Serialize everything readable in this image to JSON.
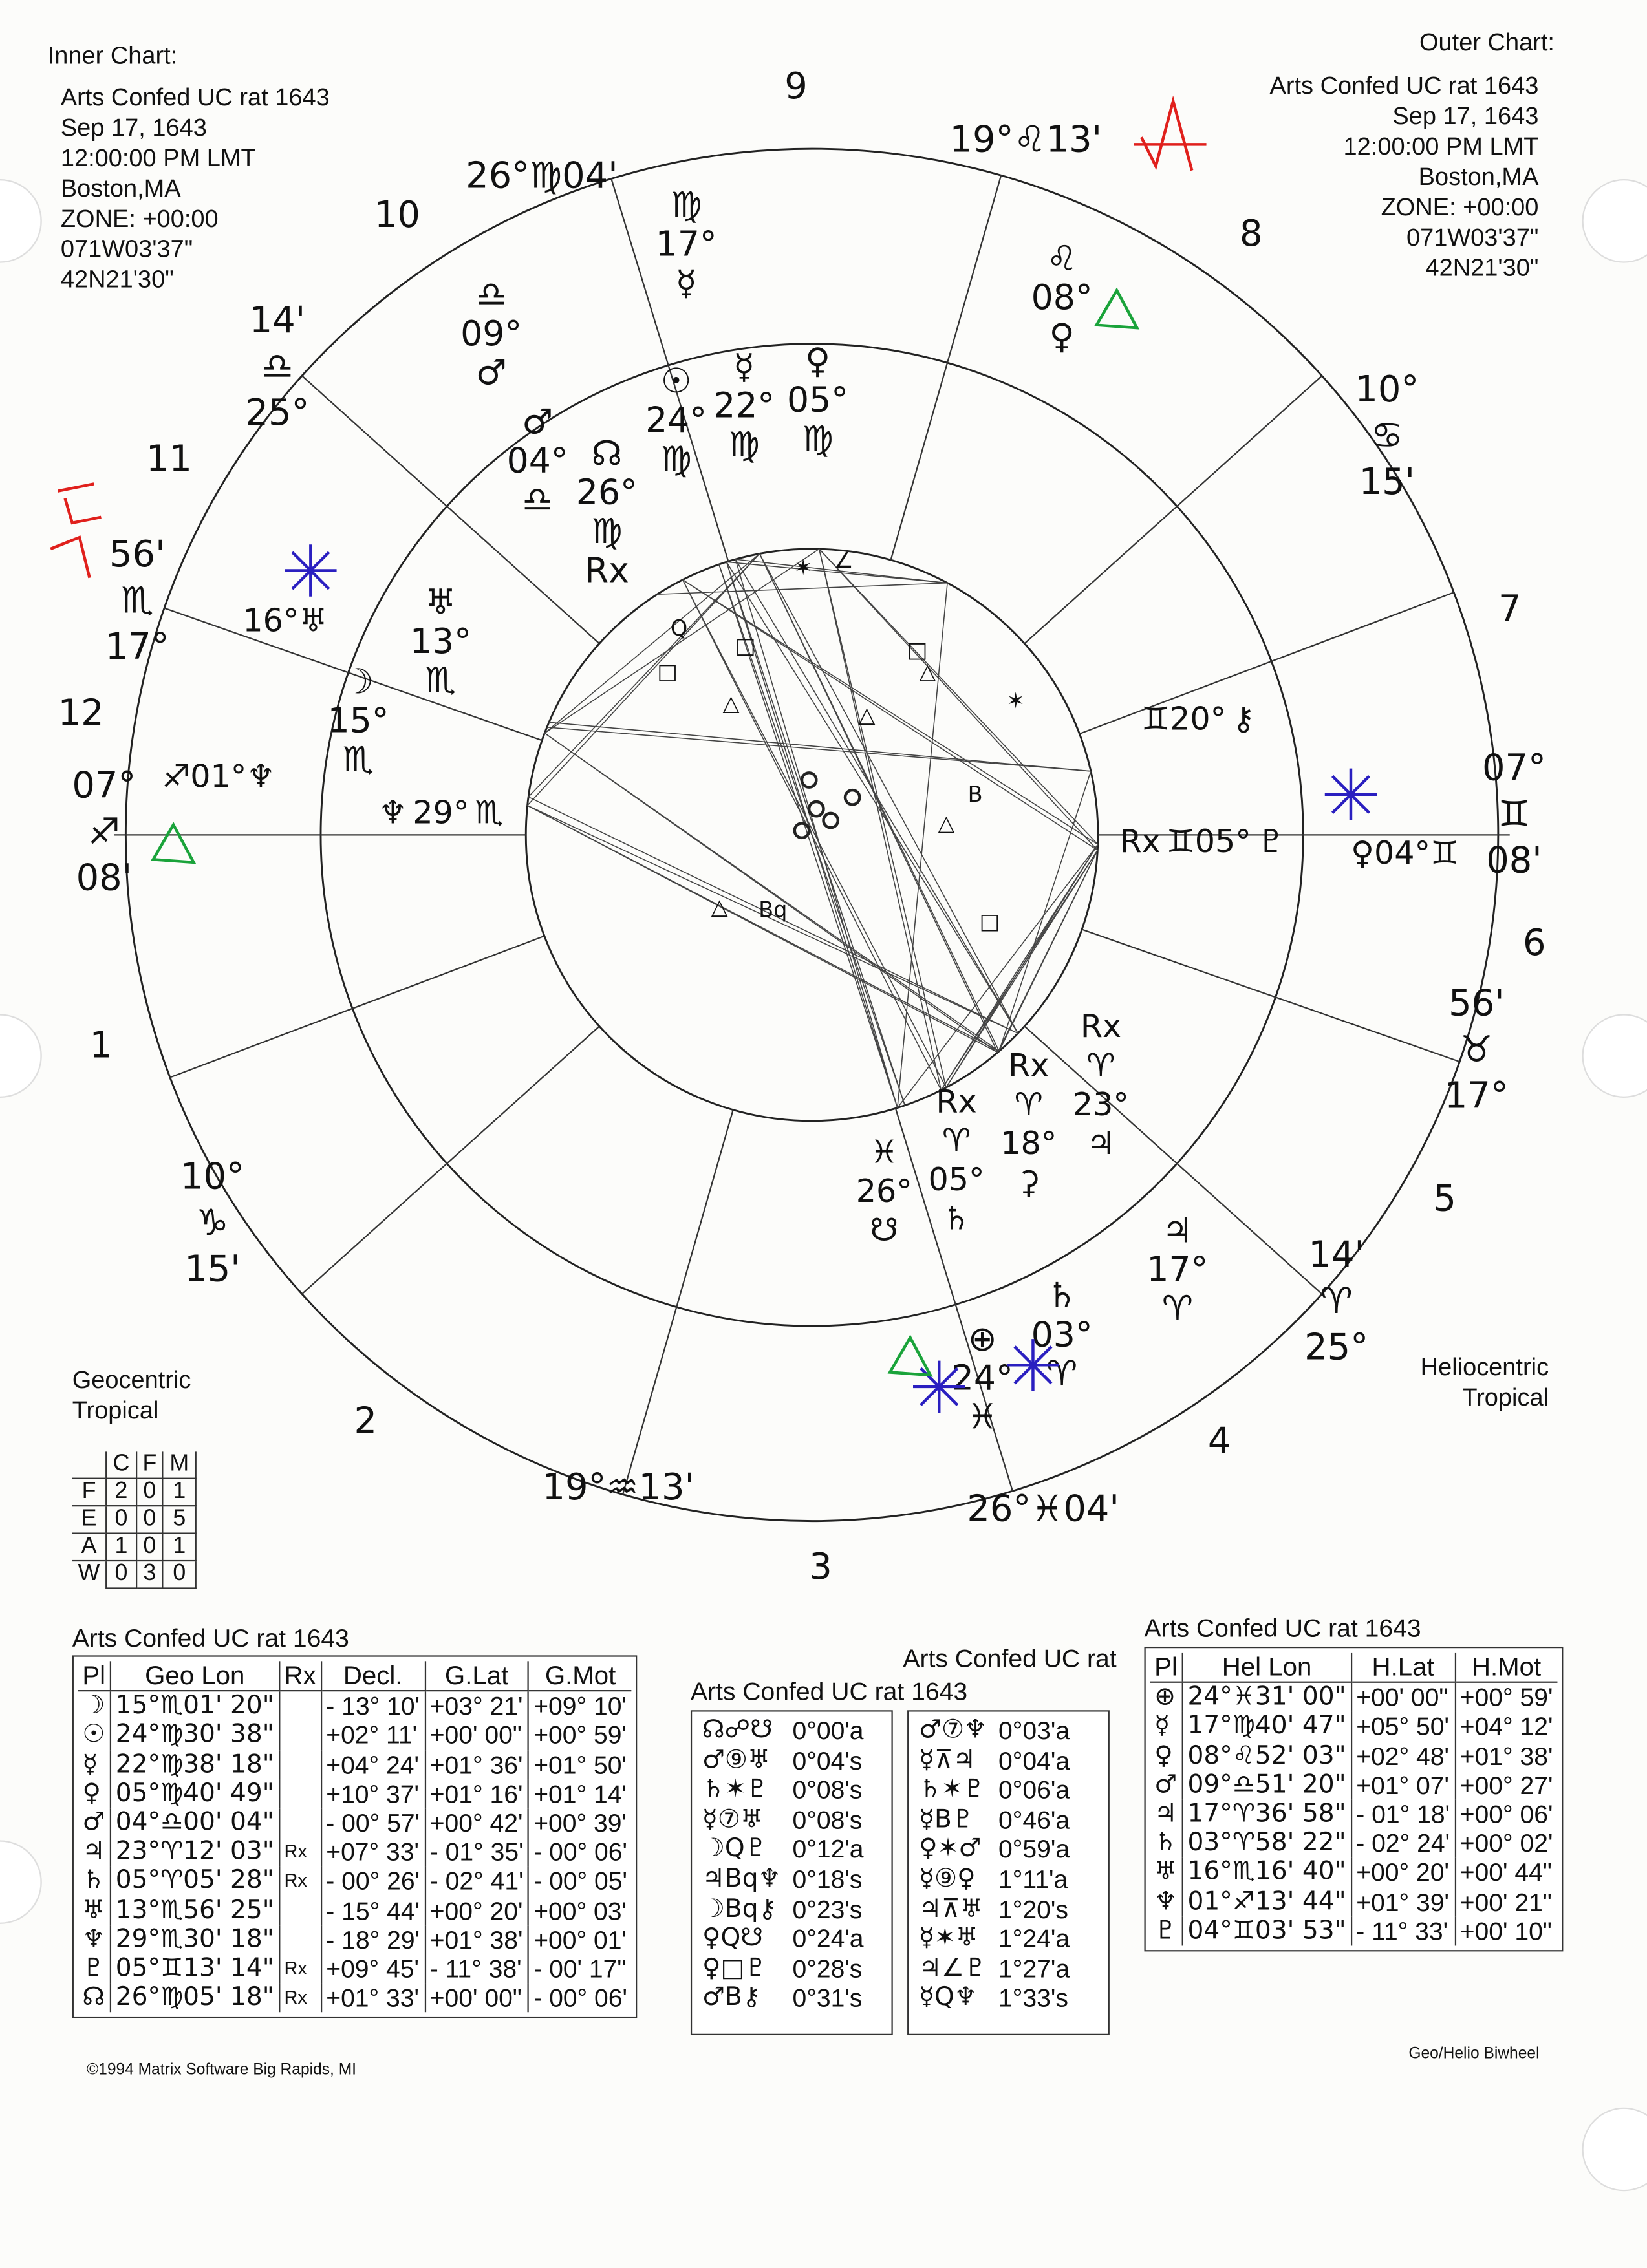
{
  "inner_header": {
    "label": "Inner Chart:",
    "name": "Arts Confed UC rat 1643",
    "date": "Sep 17, 1643",
    "time": "12:00:00 PM LMT",
    "place": "Boston,MA",
    "zone": "ZONE: +00:00",
    "lon": "071W03'37\"",
    "lat": "42N21'30\""
  },
  "outer_header": {
    "label": "Outer Chart:",
    "name": "Arts Confed UC rat 1643",
    "date": "Sep 17, 1643",
    "time": "12:00:00 PM LMT",
    "place": "Boston,MA",
    "zone": "ZONE: +00:00",
    "lon": "071W03'37\"",
    "lat": "42N21'30\""
  },
  "left_system": {
    "line1": "Geocentric",
    "line2": "Tropical"
  },
  "right_system": {
    "line1": "Heliocentric",
    "line2": "Tropical"
  },
  "wheel": {
    "house_numbers": [
      "1",
      "2",
      "3",
      "4",
      "5",
      "6",
      "7",
      "8",
      "9",
      "10",
      "11",
      "12"
    ],
    "cusp_labels": [
      [
        "26°",
        "♍",
        "04'"
      ],
      [
        "19°",
        "♌",
        "13'"
      ],
      [
        "10°",
        "♋",
        "15'"
      ],
      [
        "07°",
        "♊",
        "08'"
      ],
      [
        "56'",
        "♉",
        "17°"
      ],
      [
        "14'",
        "♈",
        "25°"
      ],
      [
        "26°",
        "♓",
        "04'"
      ],
      [
        "19°",
        "♒",
        "13'"
      ],
      [
        "10°",
        "♑",
        "15'"
      ],
      [
        "07°",
        "♐",
        "08'"
      ],
      [
        "56'",
        "♏",
        "17°"
      ],
      [
        "14'",
        "♎",
        "25°"
      ]
    ],
    "inner_planets": [
      [
        "♂",
        "04°",
        "♎"
      ],
      [
        "☊",
        "26°",
        "♍",
        "Rx"
      ],
      [
        "☉",
        "24°",
        "♍"
      ],
      [
        "☿",
        "22°",
        "♍"
      ],
      [
        "♀",
        "05°",
        "♍"
      ],
      [
        "♅",
        "13°",
        "♏"
      ],
      [
        "☽",
        "15°",
        "♏"
      ],
      [
        "♆",
        "29°",
        "♏"
      ],
      [
        "Rx",
        "♊05°",
        "♇"
      ],
      [
        "♊20°",
        "⚷"
      ],
      [
        "Rx",
        "♈",
        "23°",
        "♃"
      ],
      [
        "Rx",
        "♈",
        "18°",
        "⚳"
      ],
      [
        "Rx",
        "♈",
        "05°",
        "♄"
      ],
      [
        "♓",
        "26°",
        "☋"
      ]
    ],
    "outer_planets": [
      [
        "♍",
        "17°",
        "☿"
      ],
      [
        "♎",
        "09°",
        "♂"
      ],
      [
        "♌",
        "08°",
        "♀"
      ],
      [
        "16°",
        "♅"
      ],
      [
        "♐01°",
        "♆"
      ],
      [
        "♀04°",
        "♊"
      ],
      [
        "♃",
        "17°",
        "♈"
      ],
      [
        "♄",
        "03°",
        "♈"
      ],
      [
        "⊕",
        "24°",
        "♓"
      ]
    ],
    "colors": {
      "ink": "#111111",
      "annotation_red": "#e0201c",
      "annotation_green": "#1aa33a",
      "annotation_blue": "#2a1fc0"
    }
  },
  "elements": {
    "cols": [
      "C",
      "F",
      "M"
    ],
    "rows": [
      [
        "F",
        "2",
        "0",
        "1"
      ],
      [
        "E",
        "0",
        "0",
        "5"
      ],
      [
        "A",
        "1",
        "0",
        "1"
      ],
      [
        "W",
        "0",
        "3",
        "0"
      ]
    ]
  },
  "geo_table": {
    "title": "Arts Confed UC rat 1643",
    "headers": [
      "Pl",
      "Geo Lon",
      "Rx",
      "Decl.",
      "G.Lat",
      "G.Mot"
    ],
    "rows": [
      [
        "☽",
        "15°♏01' 20\"",
        "",
        "- 13° 10'",
        "+03° 21'",
        "+09° 10'"
      ],
      [
        "☉",
        "24°♍30' 38\"",
        "",
        "+02° 11'",
        "+00'  00\"",
        "+00° 59'"
      ],
      [
        "☿",
        "22°♍38' 18\"",
        "",
        "+04° 24'",
        "+01° 36'",
        "+01° 50'"
      ],
      [
        "♀",
        "05°♍40' 49\"",
        "",
        "+10° 37'",
        "+01° 16'",
        "+01° 14'"
      ],
      [
        "♂",
        "04°♎00' 04\"",
        "",
        "- 00° 57'",
        "+00° 42'",
        "+00° 39'"
      ],
      [
        "♃",
        "23°♈12' 03\"",
        "Rx",
        "+07° 33'",
        "- 01° 35'",
        "- 00° 06'"
      ],
      [
        "♄",
        "05°♈05' 28\"",
        "Rx",
        "- 00° 26'",
        "- 02° 41'",
        "- 00° 05'"
      ],
      [
        "♅",
        "13°♏56' 25\"",
        "",
        "- 15° 44'",
        "+00° 20'",
        "+00° 03'"
      ],
      [
        "♆",
        "29°♏30' 18\"",
        "",
        "- 18° 29'",
        "+01° 38'",
        "+00° 01'"
      ],
      [
        "♇",
        "05°♊13' 14\"",
        "Rx",
        "+09° 45'",
        "- 11° 38'",
        "- 00'  17\""
      ],
      [
        "☊",
        "26°♍05' 18\"",
        "Rx",
        "+01° 33'",
        "+00'  00\"",
        "- 00° 06'"
      ]
    ]
  },
  "aspect_table_1": {
    "title": "Arts Confed UC rat 1643",
    "rows": [
      [
        "☊☍☋",
        "0°00'a"
      ],
      [
        "♂⑨♅",
        "0°04's"
      ],
      [
        "♄✶♇",
        "0°08's"
      ],
      [
        "☿⑦♅",
        "0°08's"
      ],
      [
        "☽Q♇",
        "0°12'a"
      ],
      [
        "♃Bq♆",
        "0°18's"
      ],
      [
        "☽Bq⚷",
        "0°23's"
      ],
      [
        "♀Q☋",
        "0°24'a"
      ],
      [
        "♀□♇",
        "0°28's"
      ],
      [
        "♂B⚷",
        "0°31's"
      ]
    ]
  },
  "aspect_table_2": {
    "title": "Arts Confed UC rat",
    "rows": [
      [
        "♂⑦♆",
        "0°03'a"
      ],
      [
        "☿⊼♃",
        "0°04'a"
      ],
      [
        "♄✶♇",
        "0°06'a"
      ],
      [
        "☿B♇",
        "0°46'a"
      ],
      [
        "♀✶♂",
        "0°59'a"
      ],
      [
        "☿⑨♀",
        "1°11'a"
      ],
      [
        "♃⊼♅",
        "1°20's"
      ],
      [
        "☿✶♅",
        "1°24'a"
      ],
      [
        "♃∠♇",
        "1°27'a"
      ],
      [
        "☿Q♆",
        "1°33's"
      ]
    ]
  },
  "helio_table": {
    "title": "Arts Confed UC rat 1643",
    "headers": [
      "Pl",
      "Hel Lon",
      "H.Lat",
      "H.Mot"
    ],
    "rows": [
      [
        "⊕",
        "24°♓31' 00\"",
        "+00'  00\"",
        "+00° 59'"
      ],
      [
        "☿",
        "17°♍40' 47\"",
        "+05° 50'",
        "+04° 12'"
      ],
      [
        "♀",
        "08°♌52' 03\"",
        "+02° 48'",
        "+01° 38'"
      ],
      [
        "♂",
        "09°♎51' 20\"",
        "+01° 07'",
        "+00° 27'"
      ],
      [
        "♃",
        "17°♈36' 58\"",
        "- 01° 18'",
        "+00° 06'"
      ],
      [
        "♄",
        "03°♈58' 22\"",
        "- 02° 24'",
        "+00° 02'"
      ],
      [
        "♅",
        "16°♏16' 40\"",
        "+00° 20'",
        "+00' 44\""
      ],
      [
        "♆",
        "01°♐13' 44\"",
        "+01° 39'",
        "+00'  21\""
      ],
      [
        "♇",
        "04°♊03' 53\"",
        "- 11° 33'",
        "+00'  10\""
      ]
    ]
  },
  "footer": {
    "copyright": "©1994 Matrix Software  Big Rapids, MI",
    "type": "Geo/Helio Biwheel"
  },
  "chart_data": {
    "type": "biwheel",
    "inner": "Geocentric Tropical",
    "outer": "Heliocentric Tropical",
    "ascendant": "07°♐08'",
    "midheaven": "26°♍04'"
  }
}
